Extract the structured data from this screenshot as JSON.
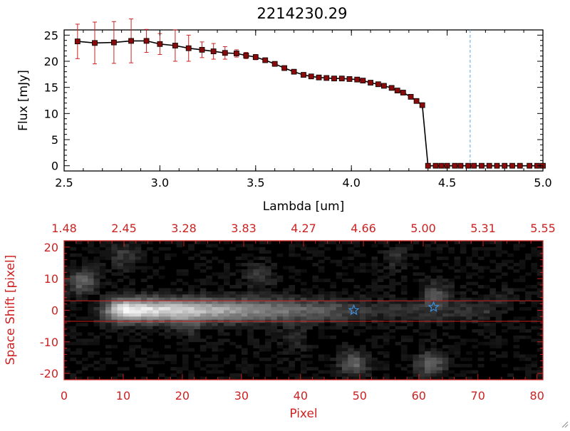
{
  "chart_data": [
    {
      "type": "line",
      "title": "2214230.29",
      "xlabel": "Lambda [um]",
      "ylabel": "Flux [mJy]",
      "xlim": [
        2.5,
        5.0
      ],
      "ylim": [
        -1,
        26
      ],
      "xticks": [
        "2.5",
        "3.0",
        "3.5",
        "4.0",
        "4.5",
        "5.0"
      ],
      "yticks": [
        "0",
        "5",
        "10",
        "15",
        "20",
        "25"
      ],
      "vline_x": 4.62,
      "series": [
        {
          "x": [
            2.57,
            2.66,
            2.76,
            2.85,
            2.93,
            3.0,
            3.08,
            3.15,
            3.22,
            3.28,
            3.34,
            3.4,
            3.45,
            3.5,
            3.55,
            3.6,
            3.65,
            3.7,
            3.75,
            3.79,
            3.83,
            3.87,
            3.91,
            3.95,
            3.99,
            4.03,
            4.06,
            4.1,
            4.14,
            4.17,
            4.21,
            4.24,
            4.27,
            4.31,
            4.34,
            4.37,
            4.4,
            4.44,
            4.47,
            4.5,
            4.54,
            4.57,
            4.61,
            4.64,
            4.68,
            4.72,
            4.76,
            4.8,
            4.84,
            4.88,
            4.93,
            4.97,
            5.0
          ],
          "y": [
            23.8,
            23.5,
            23.6,
            23.9,
            23.9,
            23.3,
            23.0,
            22.5,
            22.2,
            21.9,
            21.6,
            21.5,
            21.1,
            20.8,
            20.2,
            19.5,
            18.7,
            18.0,
            17.4,
            17.1,
            16.9,
            16.8,
            16.7,
            16.7,
            16.6,
            16.5,
            16.3,
            15.9,
            15.6,
            15.3,
            14.9,
            14.4,
            14.0,
            13.2,
            12.4,
            11.6,
            0,
            0,
            0,
            0,
            0,
            0,
            0,
            0,
            0,
            0,
            0,
            0,
            0,
            0,
            0,
            0,
            0
          ],
          "err": [
            3.3,
            4.0,
            4.0,
            4.2,
            2.2,
            2.0,
            3.0,
            2.5,
            1.5,
            1.5,
            1.2,
            0.7,
            0.6,
            0.5,
            0.4,
            0.4,
            0.4,
            0.3,
            0.3,
            0.3,
            0.3,
            0.3,
            0.3,
            0.3,
            0.3,
            0.3,
            0.3,
            0.3,
            0.3,
            0.3,
            0.3,
            0.3,
            0.3,
            0.3,
            0.3,
            0.3,
            0.2,
            0.2,
            0.2,
            0.2,
            0.2,
            0.2,
            0.2,
            0.2,
            0.2,
            0.2,
            0.2,
            0.2,
            0.2,
            0.2,
            0.2,
            0.2,
            0.2
          ]
        }
      ],
      "colors": {
        "line": "#000000",
        "marker": "#8a0a0a",
        "error": "#cc2222",
        "vline": "#5aa8e6"
      }
    },
    {
      "type": "heatmap",
      "xlabel": "Pixel",
      "ylabel": "Space Shift [pixel]",
      "xlim": [
        0,
        81
      ],
      "ylim": [
        -22,
        22
      ],
      "xticks": [
        "0",
        "10",
        "20",
        "30",
        "40",
        "50",
        "60",
        "70",
        "80"
      ],
      "yticks": [
        "-20",
        "-10",
        "0",
        "10",
        "20"
      ],
      "top_axis_ticks": [
        "1.48",
        "2.45",
        "3.28",
        "3.83",
        "4.27",
        "4.66",
        "5.00",
        "5.31",
        "5.55"
      ],
      "hlines_y": [
        3,
        -3.5
      ],
      "stars": [
        {
          "x": 49,
          "y": 0
        },
        {
          "x": 62.5,
          "y": 1
        }
      ],
      "colors": {
        "axis": "#cc2222",
        "star": "#3b8fe0",
        "background": "#000000"
      }
    }
  ]
}
